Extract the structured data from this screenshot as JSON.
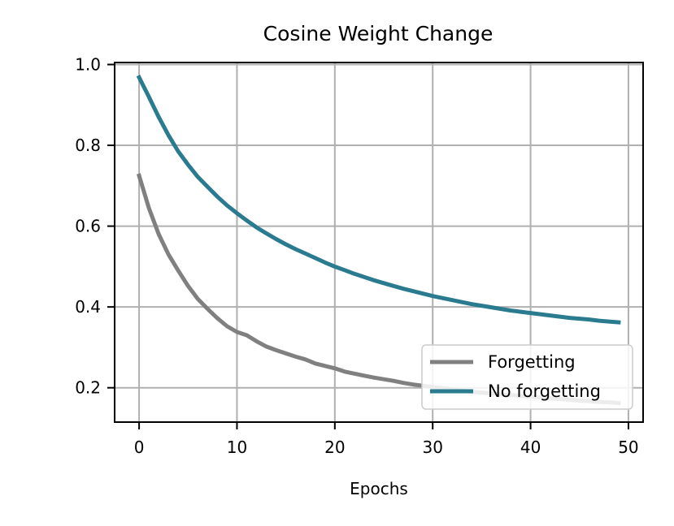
{
  "chart_data": {
    "type": "line",
    "title": "Cosine Weight Change",
    "xlabel": "Epochs",
    "ylabel": "",
    "xlim": [
      -2.5,
      51.5
    ],
    "ylim": [
      0.115,
      1.005
    ],
    "xticks": [
      0,
      10,
      20,
      30,
      40,
      50
    ],
    "xtick_labels": [
      "0",
      "10",
      "20",
      "30",
      "40",
      "50"
    ],
    "yticks": [
      0.2,
      0.4,
      0.6,
      0.8,
      1.0
    ],
    "ytick_labels": [
      "0.2",
      "0.4",
      "0.6",
      "0.8",
      "1.0"
    ],
    "grid": true,
    "legend_position": "lower-right",
    "x": [
      0,
      1,
      2,
      3,
      4,
      5,
      6,
      7,
      8,
      9,
      10,
      11,
      12,
      13,
      14,
      15,
      16,
      17,
      18,
      19,
      20,
      21,
      22,
      23,
      24,
      25,
      26,
      27,
      28,
      29,
      30,
      31,
      32,
      33,
      34,
      35,
      36,
      37,
      38,
      39,
      40,
      41,
      42,
      43,
      44,
      45,
      46,
      47,
      48,
      49
    ],
    "series": [
      {
        "name": "Forgetting",
        "color": "#808080",
        "values": [
          0.725,
          0.645,
          0.58,
          0.53,
          0.49,
          0.452,
          0.42,
          0.395,
          0.372,
          0.352,
          0.338,
          0.33,
          0.315,
          0.302,
          0.293,
          0.285,
          0.277,
          0.27,
          0.26,
          0.254,
          0.248,
          0.24,
          0.235,
          0.23,
          0.225,
          0.221,
          0.217,
          0.212,
          0.208,
          0.205,
          0.202,
          0.199,
          0.196,
          0.193,
          0.19,
          0.188,
          0.186,
          0.184,
          0.182,
          0.18,
          0.178,
          0.176,
          0.174,
          0.172,
          0.17,
          0.168,
          0.167,
          0.165,
          0.164,
          0.162
        ]
      },
      {
        "name": "No forgetting",
        "color": "#2a7a90",
        "values": [
          0.968,
          0.92,
          0.87,
          0.825,
          0.785,
          0.752,
          0.722,
          0.697,
          0.673,
          0.651,
          0.632,
          0.614,
          0.597,
          0.582,
          0.568,
          0.555,
          0.543,
          0.532,
          0.521,
          0.51,
          0.5,
          0.491,
          0.482,
          0.474,
          0.466,
          0.459,
          0.452,
          0.445,
          0.439,
          0.433,
          0.427,
          0.422,
          0.417,
          0.412,
          0.407,
          0.403,
          0.399,
          0.395,
          0.391,
          0.388,
          0.385,
          0.382,
          0.379,
          0.376,
          0.373,
          0.371,
          0.369,
          0.366,
          0.364,
          0.362
        ]
      }
    ]
  }
}
